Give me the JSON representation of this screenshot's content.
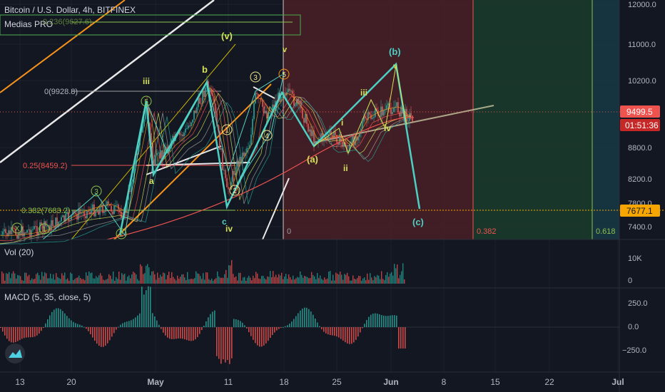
{
  "header": {
    "symbol_line": "Bitcoin / U.S. Dollar, 4h, BITFINEX",
    "indicator": "Medias PRO",
    "hidden_fib_label": "0.236(9627.6)"
  },
  "colors": {
    "background": "#131722",
    "grid": "#1e2230",
    "up": "#26a69a",
    "down": "#ef5350",
    "wave_main": "#4dd0c4",
    "wave_minor": "#d4e157",
    "label_green": "#8bc34a",
    "label_yellow": "#f0e68c",
    "fib_red_zone": "#5a2328",
    "fib_green_zone": "#1f3d2f",
    "fib_teal_zone": "#173a45",
    "price_tag_current": "#ef5350",
    "price_tag_fib": "#f7a600"
  },
  "chart_data": [
    {
      "type": "candlestick",
      "title": "Bitcoin / U.S. Dollar, 4h, BITFINEX",
      "y_axis": {
        "ticks": [
          12000,
          11000,
          10200,
          9499.5,
          8800,
          8200,
          7800,
          7677.1,
          7400
        ],
        "tick_labels": [
          "12000.0",
          "11000.0",
          "10200.0",
          "9499.5",
          "8800.0",
          "8200.0",
          "7800.0",
          "7677.1",
          "7400.0"
        ],
        "range": [
          7100,
          12100
        ]
      },
      "x_axis": {
        "tick_labels": [
          "13",
          "20",
          "May",
          "11",
          "18",
          "25",
          "Jun",
          "8",
          "15",
          "22",
          "Jul"
        ]
      },
      "current_price": {
        "value": "9499.5",
        "countdown": "01:51:36"
      },
      "fib_price_tag": "7677.1",
      "fib_levels": [
        {
          "label": "0(9928.8)",
          "value": 9928.8
        },
        {
          "label": "0.25(8459.2)",
          "value": 8459.2
        },
        {
          "label": "0.382(7683.2)",
          "value": 7683.2
        }
      ],
      "fib_zone_labels": [
        "0",
        "0.382",
        "0.618"
      ],
      "elliott_labels": [
        "(v)",
        "iii",
        "b",
        "a",
        "c",
        "iv",
        "v",
        "(b)",
        "(a)",
        "(c)",
        "i",
        "ii",
        "iii",
        "iv",
        "v",
        "1",
        "2",
        "3",
        "4",
        "5",
        "3",
        "5",
        "X",
        "1",
        "2"
      ],
      "main_wave_path": [
        {
          "date": "Apr 29",
          "price": 9600
        },
        {
          "date": "Apr 30",
          "price": 8500
        },
        {
          "date": "May 8",
          "price": 10000
        },
        {
          "date": "May 11",
          "price": 7700
        },
        {
          "date": "May 18",
          "price": 9900
        },
        {
          "date": "May 22",
          "price": 8800
        },
        {
          "date": "Jun 2",
          "price": 10300
        },
        {
          "date": "Jun 4",
          "price": 7680
        }
      ]
    },
    {
      "type": "bar",
      "title": "Vol (20)",
      "y_axis": {
        "tick_labels": [
          "10K",
          "0"
        ]
      }
    },
    {
      "type": "histogram",
      "title": "MACD (5, 35, close, 5)",
      "y_axis": {
        "tick_labels": [
          "250.0",
          "0.0",
          "−250.0"
        ]
      }
    }
  ]
}
